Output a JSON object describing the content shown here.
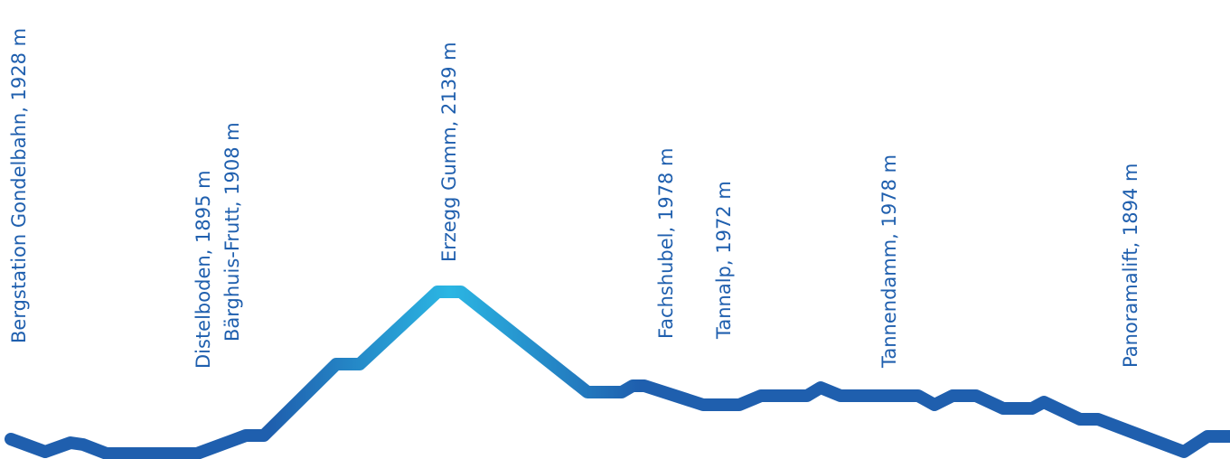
{
  "colors": {
    "label": "#1f5fae",
    "line_main": "#1f5fae",
    "line_peak": "#2bb6e3"
  },
  "stations": [
    {
      "label": "Bergstation Gondelbahn, 1928 m"
    },
    {
      "label": "Distelboden, 1895 m"
    },
    {
      "label": "Bärghuis-Frutt, 1908 m"
    },
    {
      "label": "Erzegg Gumm, 2139 m"
    },
    {
      "label": "Fachshubel, 1978 m"
    },
    {
      "label": "Tannalp, 1972 m"
    },
    {
      "label": "Tannendamm, 1978 m"
    },
    {
      "label": "Panoramalift, 1894 m"
    }
  ]
}
